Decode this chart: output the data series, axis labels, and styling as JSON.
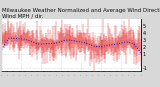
{
  "title1": "Milwaukee Weather Normalized and Average Wind Direction (Last 24 Hours)",
  "title2": "Wind MPH / dir.",
  "n_points": 288,
  "background_color": "#ffffff",
  "bar_color": "#dd0000",
  "avg_line_color": "#0000cc",
  "ylim": [
    -1.5,
    6.0
  ],
  "yticks": [
    5,
    4,
    3,
    2,
    1,
    -1
  ],
  "ytick_labels": [
    "5",
    "4",
    "3",
    "2",
    "1",
    "-1"
  ],
  "grid_color": "#bbbbbb",
  "title_fontsize": 4.0,
  "tick_fontsize": 3.5,
  "fig_bg": "#d8d8d8",
  "seed": 42
}
